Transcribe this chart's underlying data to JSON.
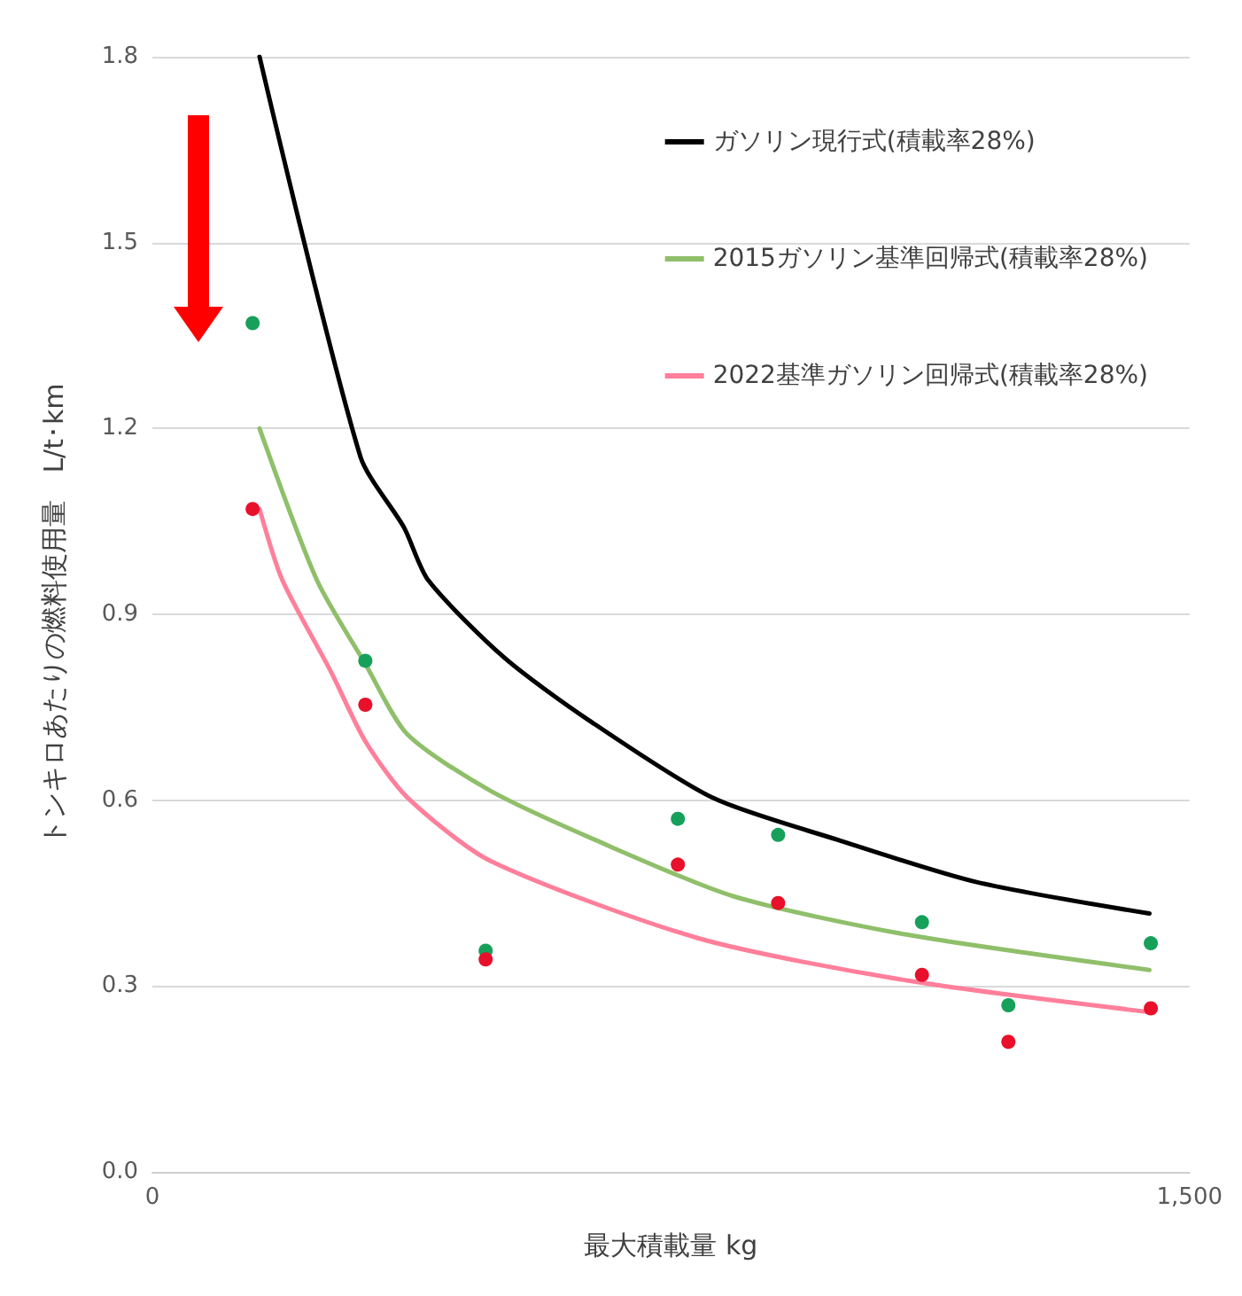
{
  "chart_data": {
    "type": "line",
    "xlabel": "最大積載量 kg",
    "ylabel": "トンキロあたりの燃料使用量　L/t･km",
    "xlim": [
      0,
      1500
    ],
    "xticks": [
      0,
      {
        "value": 1500,
        "label": "1,500"
      }
    ],
    "ylim": [
      0,
      1.8
    ],
    "yticks": [
      {
        "value": 0,
        "label": "0.0"
      },
      {
        "value": 0.3,
        "label": "0.3"
      },
      {
        "value": 0.6,
        "label": "0.6"
      },
      {
        "value": 0.9,
        "label": "0.9"
      },
      {
        "value": 1.2,
        "label": "1.2"
      },
      {
        "value": 1.5,
        "label": "1.5"
      },
      {
        "value": 1.8,
        "label": "1.8"
      }
    ],
    "grid": "y",
    "legend": "top right",
    "line_style": "solid",
    "series": [
      {
        "name": "ガソリン現行式(積載率28%)",
        "marker": "none",
        "color": "#000000",
        "x": [
          155,
          301,
          364,
          399,
          509,
          630,
          810,
          991,
          1191,
          1442
        ],
        "values": [
          1.8,
          1.154,
          1.04,
          0.955,
          0.83,
          0.73,
          0.604,
          0.536,
          0.468,
          0.417
        ]
      },
      {
        "name": "2015ガソリン基準回帰式(積載率28%)",
        "marker": "none",
        "color": "#8fbf6a",
        "x": [
          155,
          238,
          308,
          369,
          489,
          640,
          840,
          1091,
          1442
        ],
        "values": [
          1.2,
          0.955,
          0.82,
          0.706,
          0.615,
          0.536,
          0.445,
          0.383,
          0.326
        ]
      },
      {
        "name": "2022基準ガソリン回帰式(積載率28%)",
        "marker": "none",
        "color": "#ff7f9a",
        "x": [
          155,
          188,
          258,
          308,
          369,
          489,
          790,
          1091,
          1442
        ],
        "values": [
          1.07,
          0.955,
          0.808,
          0.695,
          0.604,
          0.502,
          0.377,
          0.309,
          0.258
        ]
      },
      {
        "type": "scatter",
        "marker": "circle",
        "color": "#16a05a",
        "x": [
          145,
          308,
          482,
          760,
          905,
          1113,
          1238,
          1444
        ],
        "values": [
          1.37,
          0.825,
          0.357,
          0.57,
          0.544,
          0.403,
          0.269,
          0.369
        ]
      },
      {
        "type": "scatter",
        "marker": "circle",
        "color": "#e8102a",
        "x": [
          145,
          308,
          482,
          760,
          905,
          1113,
          1238,
          1444
        ],
        "values": [
          1.07,
          0.754,
          0.343,
          0.496,
          0.434,
          0.318,
          0.21,
          0.264
        ]
      }
    ]
  }
}
